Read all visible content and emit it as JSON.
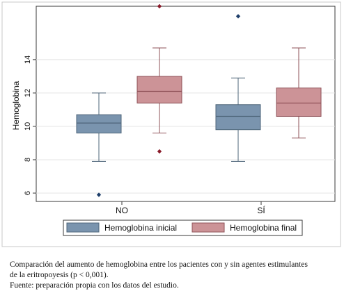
{
  "chart_data": {
    "type": "boxplot",
    "ylabel": "Hemoglobina",
    "ylim": [
      5.5,
      17.2
    ],
    "yticks": [
      6,
      8,
      10,
      12,
      14
    ],
    "grid": true,
    "legend_position": "bottom",
    "categories": [
      "NO",
      "SÍ"
    ],
    "series": [
      {
        "name": "Hemoglobina inicial",
        "color": "#7a94ae",
        "edge": "#4e6579",
        "boxes": [
          {
            "whisker_low": 7.9,
            "q1": 9.6,
            "median": 10.2,
            "q3": 10.7,
            "whisker_high": 12.0,
            "outliers": [
              5.9
            ]
          },
          {
            "whisker_low": 7.9,
            "q1": 9.8,
            "median": 10.6,
            "q3": 11.3,
            "whisker_high": 12.9,
            "outliers": [
              16.6
            ]
          }
        ]
      },
      {
        "name": "Hemoglobina final",
        "color": "#cc9397",
        "edge": "#8e5057",
        "boxes": [
          {
            "whisker_low": 9.6,
            "q1": 11.4,
            "median": 12.1,
            "q3": 13.0,
            "whisker_high": 14.7,
            "outliers": [
              8.5,
              17.2
            ]
          },
          {
            "whisker_low": 9.3,
            "q1": 10.6,
            "median": 11.4,
            "q3": 12.3,
            "whisker_high": 14.7,
            "outliers": []
          }
        ]
      }
    ],
    "outlier_colors": [
      "#1f3f6b",
      "#8a1c2b"
    ]
  },
  "caption": {
    "lines": [
      "Comparación del aumento de hemoglobina entre los pacientes con y sin agentes estimulantes",
      "de la eritropoyesis (p < 0,001).",
      "Fuente: preparación propia con los datos del estudio."
    ]
  }
}
